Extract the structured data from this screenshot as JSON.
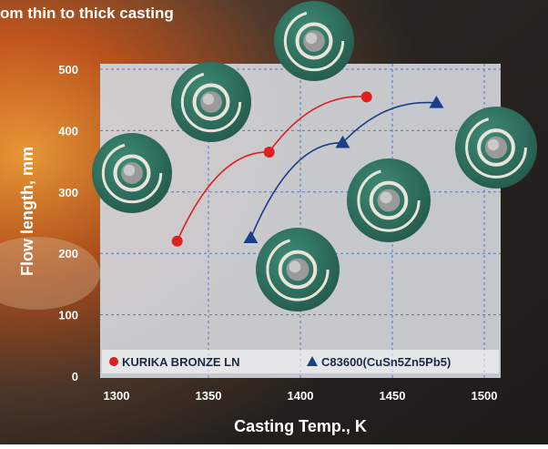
{
  "colors": {
    "plot_bg": "#d3d6db",
    "grid": "#4466aa",
    "kurika": "#e02020",
    "c83600": "#1a3f8a",
    "bubble": "#2f6f5e",
    "white_text": "#ffffff",
    "dark_text": "#1a2a4a"
  },
  "chart_data": {
    "type": "line",
    "title": "om thin to thick casting",
    "xlabel": "Casting Temp., K",
    "ylabel": "Flow length, mm",
    "xlim": [
      1300,
      1500
    ],
    "ylim": [
      0,
      500
    ],
    "x_ticks": [
      "1300",
      "1350",
      "1400",
      "1450",
      "1500"
    ],
    "y_ticks": [
      "0",
      "100",
      "200",
      "300",
      "400",
      "500"
    ],
    "grid": true,
    "legend_position": "bottom",
    "series": [
      {
        "name": "KURIKA BRONZE LN",
        "marker": "circle",
        "color": "#e02020",
        "points": [
          {
            "x": 1333,
            "y": 220
          },
          {
            "x": 1383,
            "y": 365
          },
          {
            "x": 1436,
            "y": 455
          }
        ]
      },
      {
        "name": "C83600(CuSn5Zn5Pb5)",
        "marker": "triangle",
        "color": "#1a3f8a",
        "points": [
          {
            "x": 1373,
            "y": 225
          },
          {
            "x": 1423,
            "y": 380
          },
          {
            "x": 1474,
            "y": 445
          }
        ]
      }
    ],
    "annotations": [
      "spiral-sample-photo",
      "spiral-sample-photo",
      "spiral-sample-photo",
      "spiral-sample-photo",
      "spiral-sample-photo",
      "spiral-sample-photo"
    ]
  }
}
